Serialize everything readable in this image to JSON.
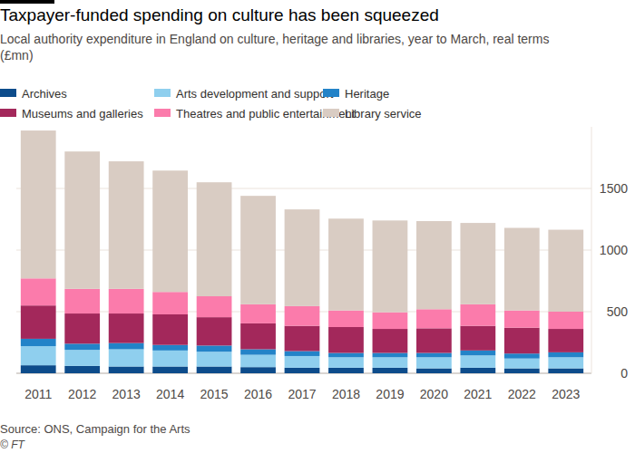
{
  "chart_data": {
    "type": "bar",
    "title": "Taxpayer-funded spending on culture has been squeezed",
    "subtitle": "Local authority expenditure in England on culture, heritage and libraries, year to March, real terms (£mn)",
    "source": "Source: ONS, Campaign for the Arts",
    "credit": "© FT",
    "categories": [
      "2011",
      "2012",
      "2013",
      "2014",
      "2015",
      "2016",
      "2017",
      "2018",
      "2019",
      "2020",
      "2021",
      "2022",
      "2023"
    ],
    "series": [
      {
        "name": "Archives",
        "color": "#0d4c8b",
        "values": [
          65,
          60,
          55,
          55,
          55,
          50,
          45,
          45,
          45,
          40,
          45,
          40,
          40
        ]
      },
      {
        "name": "Arts development and support",
        "color": "#8fcfee",
        "values": [
          155,
          130,
          140,
          130,
          120,
          100,
          95,
          85,
          85,
          90,
          100,
          80,
          90
        ]
      },
      {
        "name": "Heritage",
        "color": "#2383c8",
        "values": [
          60,
          50,
          50,
          45,
          50,
          45,
          40,
          35,
          35,
          35,
          40,
          40,
          40
        ]
      },
      {
        "name": "Museums and galleries",
        "color": "#a3285b",
        "values": [
          270,
          245,
          240,
          248,
          230,
          210,
          205,
          210,
          195,
          200,
          200,
          210,
          190
        ]
      },
      {
        "name": "Theatres and public entertainment",
        "color": "#fb7bab",
        "values": [
          220,
          200,
          200,
          182,
          170,
          155,
          160,
          135,
          135,
          155,
          175,
          140,
          140
        ]
      },
      {
        "name": "Library service",
        "color": "#d9ccc3",
        "values": [
          1200,
          1115,
          1035,
          985,
          925,
          880,
          785,
          745,
          745,
          715,
          660,
          670,
          665
        ]
      }
    ],
    "stacked": true,
    "grid": true,
    "legend": "top",
    "ylim": [
      0,
      2000
    ],
    "yticks": [
      0,
      500,
      1000,
      1500
    ]
  }
}
